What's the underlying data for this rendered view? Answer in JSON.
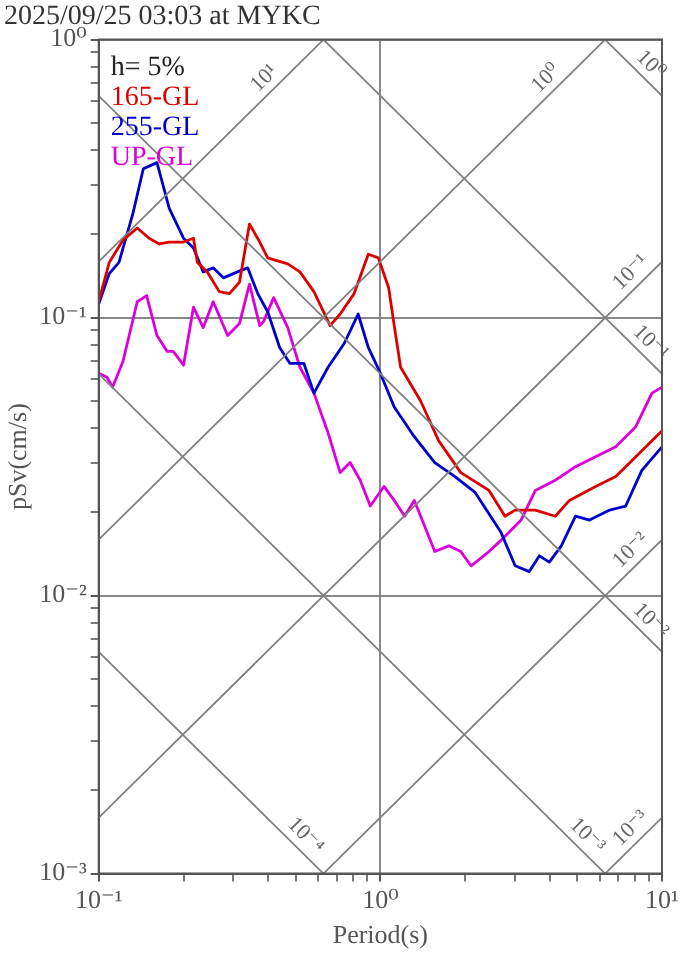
{
  "chart_data": {
    "type": "line",
    "title": "2025/09/25 03:03 at MYKC",
    "xlabel": "Period(s)",
    "ylabel": "pSv(cm/s)",
    "log": "xy",
    "grid": true,
    "legend": "top left",
    "marker": "none",
    "line_style": "solid",
    "xlim": [
      0.1,
      10
    ],
    "ylim": [
      0.001,
      1
    ],
    "xticks": [
      {
        "value": 0.1,
        "label": "10⁻¹"
      },
      {
        "value": 0.2,
        "label": null
      },
      {
        "value": 0.3,
        "label": null
      },
      {
        "value": 0.4,
        "label": null
      },
      {
        "value": 0.5,
        "label": null
      },
      {
        "value": 0.6,
        "label": null
      },
      {
        "value": 0.7,
        "label": null
      },
      {
        "value": 0.8,
        "label": null
      },
      {
        "value": 0.9,
        "label": null
      },
      {
        "value": 1,
        "label": "10⁰"
      },
      {
        "value": 2,
        "label": null
      },
      {
        "value": 3,
        "label": null
      },
      {
        "value": 4,
        "label": null
      },
      {
        "value": 5,
        "label": null
      },
      {
        "value": 6,
        "label": null
      },
      {
        "value": 7,
        "label": null
      },
      {
        "value": 8,
        "label": null
      },
      {
        "value": 9,
        "label": null
      },
      {
        "value": 10,
        "label": "10¹"
      }
    ],
    "yticks": [
      {
        "value": 0.001,
        "label": "10⁻³"
      },
      {
        "value": 0.002,
        "label": null
      },
      {
        "value": 0.003,
        "label": null
      },
      {
        "value": 0.004,
        "label": null
      },
      {
        "value": 0.005,
        "label": null
      },
      {
        "value": 0.006,
        "label": null
      },
      {
        "value": 0.007,
        "label": null
      },
      {
        "value": 0.008,
        "label": null
      },
      {
        "value": 0.009,
        "label": null
      },
      {
        "value": 0.01,
        "label": "10⁻²"
      },
      {
        "value": 0.02,
        "label": null
      },
      {
        "value": 0.03,
        "label": null
      },
      {
        "value": 0.04,
        "label": null
      },
      {
        "value": 0.05,
        "label": null
      },
      {
        "value": 0.06,
        "label": null
      },
      {
        "value": 0.07,
        "label": null
      },
      {
        "value": 0.08,
        "label": null
      },
      {
        "value": 0.09,
        "label": null
      },
      {
        "value": 0.1,
        "label": "10⁻¹"
      },
      {
        "value": 0.2,
        "label": null
      },
      {
        "value": 0.3,
        "label": null
      },
      {
        "value": 0.4,
        "label": null
      },
      {
        "value": 0.5,
        "label": null
      },
      {
        "value": 0.6,
        "label": null
      },
      {
        "value": 0.7,
        "label": null
      },
      {
        "value": 0.8,
        "label": null
      },
      {
        "value": 0.9,
        "label": null
      },
      {
        "value": 1,
        "label": "10⁰"
      }
    ],
    "annotations": [
      "h= 5%",
      {
        "text": "10¹",
        "x": 0.42,
        "y": 0.668
      },
      {
        "text": "10⁰",
        "x": 4.2,
        "y": 0.668
      },
      {
        "text": "10⁰",
        "x": 8.4,
        "y": 0.748
      },
      {
        "text": "10⁻¹",
        "x": 8.4,
        "y": 0.134
      },
      {
        "text": "10⁻¹",
        "x": 8.4,
        "y": 0.0748
      },
      {
        "text": "10⁻²",
        "x": 8.4,
        "y": 0.0134
      },
      {
        "text": "10⁻²",
        "x": 8.4,
        "y": 0.00748
      },
      {
        "text": "10⁻³",
        "x": 8.4,
        "y": 0.00134
      },
      {
        "text": "10⁻³",
        "x": 5.0,
        "y": 0.00126
      },
      {
        "text": "10⁻⁴",
        "x": 0.5,
        "y": 0.00126
      }
    ],
    "series": [
      {
        "type": "line",
        "color": "#808080",
        "x": [
          6.28,
          10
        ],
        "values": [
          0.001,
          0.00159
        ]
      },
      {
        "type": "line",
        "color": "#808080",
        "x": [
          0.628,
          10
        ],
        "values": [
          0.001,
          0.0159
        ]
      },
      {
        "type": "line",
        "color": "#808080",
        "x": [
          0.1,
          10
        ],
        "values": [
          0.00159,
          0.159
        ]
      },
      {
        "type": "line",
        "color": "#808080",
        "x": [
          0.1,
          6.28
        ],
        "values": [
          0.0159,
          1
        ]
      },
      {
        "type": "line",
        "color": "#808080",
        "x": [
          0.1,
          0.628
        ],
        "values": [
          0.159,
          1
        ]
      },
      {
        "type": "line",
        "color": "#808080",
        "x": [
          0.1,
          0.628
        ],
        "values": [
          0.00628,
          0.001
        ]
      },
      {
        "type": "line",
        "color": "#808080",
        "x": [
          0.1,
          6.28
        ],
        "values": [
          0.0628,
          0.001
        ]
      },
      {
        "type": "line",
        "color": "#808080",
        "x": [
          0.1,
          10
        ],
        "values": [
          0.628,
          0.00628
        ]
      },
      {
        "type": "line",
        "color": "#808080",
        "x": [
          0.628,
          10
        ],
        "values": [
          1,
          0.0628
        ]
      },
      {
        "type": "line",
        "color": "#808080",
        "x": [
          6.28,
          10
        ],
        "values": [
          1,
          0.628
        ]
      },
      {
        "type": "line",
        "name": "165-GL",
        "color": "#dd0000",
        "x": [
          0.1,
          0.109,
          0.122,
          0.137,
          0.151,
          0.164,
          0.178,
          0.2,
          0.217,
          0.224,
          0.243,
          0.268,
          0.291,
          0.316,
          0.343,
          0.373,
          0.398,
          0.469,
          0.518,
          0.581,
          0.663,
          0.72,
          0.807,
          0.906,
          0.984,
          1.07,
          1.12,
          1.18,
          1.39,
          1.61,
          1.93,
          2.43,
          2.77,
          3.01,
          3.55,
          4.18,
          4.69,
          5.81,
          6.85,
          8.07,
          10
        ],
        "values": [
          0.114,
          0.158,
          0.19,
          0.21,
          0.193,
          0.184,
          0.187,
          0.187,
          0.193,
          0.158,
          0.146,
          0.124,
          0.122,
          0.134,
          0.217,
          0.187,
          0.164,
          0.156,
          0.146,
          0.124,
          0.0936,
          0.103,
          0.122,
          0.169,
          0.164,
          0.128,
          0.0936,
          0.0663,
          0.0501,
          0.0361,
          0.0277,
          0.0239,
          0.0193,
          0.0203,
          0.0203,
          0.0193,
          0.022,
          0.0247,
          0.0268,
          0.0316,
          0.0392
        ]
      },
      {
        "type": "line",
        "name": "255-GL",
        "color": "#0000cc",
        "x": [
          0.1,
          0.109,
          0.118,
          0.132,
          0.144,
          0.161,
          0.178,
          0.2,
          0.217,
          0.235,
          0.255,
          0.277,
          0.311,
          0.338,
          0.367,
          0.398,
          0.439,
          0.477,
          0.535,
          0.581,
          0.652,
          0.744,
          0.834,
          0.906,
          1.0,
          1.12,
          1.32,
          1.56,
          1.84,
          2.17,
          2.68,
          3.01,
          3.38,
          3.67,
          3.98,
          4.39,
          4.93,
          5.53,
          6.52,
          7.43,
          8.48,
          10
        ],
        "values": [
          0.112,
          0.144,
          0.158,
          0.235,
          0.343,
          0.361,
          0.247,
          0.193,
          0.178,
          0.146,
          0.151,
          0.139,
          0.146,
          0.151,
          0.122,
          0.105,
          0.0781,
          0.0685,
          0.0685,
          0.0535,
          0.0663,
          0.0807,
          0.103,
          0.0781,
          0.0631,
          0.0477,
          0.0373,
          0.0301,
          0.0268,
          0.0235,
          0.0169,
          0.0128,
          0.0122,
          0.0139,
          0.0132,
          0.0151,
          0.0193,
          0.0187,
          0.0203,
          0.021,
          0.0282,
          0.0343
        ]
      },
      {
        "type": "line",
        "name": "UP-GL",
        "color": "#dd00dd",
        "x": [
          0.1,
          0.107,
          0.112,
          0.122,
          0.137,
          0.148,
          0.161,
          0.175,
          0.184,
          0.2,
          0.217,
          0.235,
          0.255,
          0.287,
          0.316,
          0.343,
          0.373,
          0.385,
          0.418,
          0.469,
          0.518,
          0.581,
          0.652,
          0.72,
          0.781,
          0.848,
          0.921,
          1.03,
          1.12,
          1.22,
          1.32,
          1.56,
          1.75,
          1.93,
          2.1,
          2.43,
          2.68,
          3.16,
          3.55,
          4.18,
          4.93,
          5.81,
          6.85,
          8.07,
          9.21,
          10
        ],
        "values": [
          0.0631,
          0.061,
          0.0562,
          0.0697,
          0.114,
          0.12,
          0.0862,
          0.0756,
          0.0756,
          0.0674,
          0.109,
          0.0921,
          0.114,
          0.0862,
          0.0952,
          0.132,
          0.0936,
          0.0968,
          0.118,
          0.0921,
          0.0663,
          0.0535,
          0.0385,
          0.0277,
          0.0301,
          0.026,
          0.021,
          0.0247,
          0.022,
          0.0193,
          0.022,
          0.0144,
          0.0151,
          0.0144,
          0.0128,
          0.0144,
          0.0158,
          0.0187,
          0.0239,
          0.026,
          0.0291,
          0.0316,
          0.0343,
          0.0405,
          0.0535,
          0.0562
        ]
      }
    ]
  }
}
